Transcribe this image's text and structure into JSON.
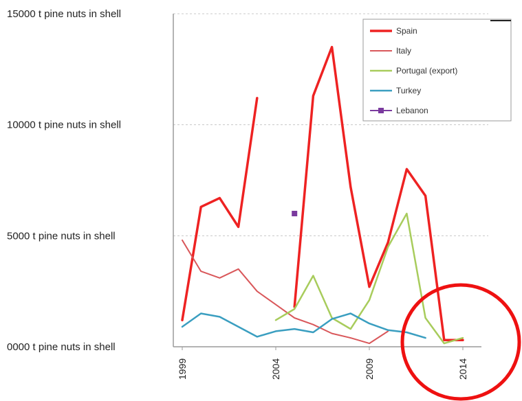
{
  "chart_data": {
    "type": "line",
    "x_ticks": [
      "1999",
      "2004",
      "2009",
      "2014"
    ],
    "y_ticks": [
      {
        "value": 0,
        "label": "0000 t pine nuts in shell"
      },
      {
        "value": 5000,
        "label": "5000 t pine nuts in shell"
      },
      {
        "value": 10000,
        "label": "10000 t pine nuts in shell"
      },
      {
        "value": 15000,
        "label": "15000 t pine nuts in shell"
      }
    ],
    "xlim": [
      1999,
      2016
    ],
    "ylim": [
      0,
      15000
    ],
    "grid": "horizontal dashed",
    "legend_position": "top-right",
    "series": [
      {
        "name": "Spain",
        "color": "#ee2222",
        "width": 3.5,
        "marker": "none",
        "segments": [
          [
            [
              1999,
              1200
            ],
            [
              2000,
              6300
            ],
            [
              2001,
              6700
            ],
            [
              2002,
              5400
            ],
            [
              2003,
              11200
            ]
          ],
          [
            [
              2005,
              1800
            ],
            [
              2006,
              11300
            ],
            [
              2007,
              13500
            ],
            [
              2008,
              7200
            ],
            [
              2009,
              2700
            ],
            [
              2010,
              4700
            ],
            [
              2011,
              8000
            ],
            [
              2012,
              6800
            ],
            [
              2013,
              300
            ],
            [
              2014,
              300
            ]
          ]
        ]
      },
      {
        "name": "Italy",
        "color": "#d9575a",
        "width": 2,
        "marker": "none",
        "segments": [
          [
            [
              1999,
              4800
            ],
            [
              2000,
              3400
            ],
            [
              2001,
              3100
            ],
            [
              2002,
              3500
            ],
            [
              2003,
              2500
            ],
            [
              2004,
              1900
            ],
            [
              2005,
              1300
            ],
            [
              2006,
              1000
            ],
            [
              2007,
              600
            ],
            [
              2008,
              400
            ],
            [
              2009,
              150
            ],
            [
              2010,
              700
            ]
          ]
        ]
      },
      {
        "name": "Portugal (export)",
        "color": "#a8cc5c",
        "width": 2.5,
        "marker": "none",
        "segments": [
          [
            [
              2004,
              1200
            ],
            [
              2005,
              1700
            ],
            [
              2006,
              3200
            ],
            [
              2007,
              1300
            ],
            [
              2008,
              800
            ],
            [
              2009,
              2100
            ],
            [
              2010,
              4500
            ],
            [
              2011,
              6000
            ],
            [
              2012,
              1300
            ],
            [
              2013,
              150
            ],
            [
              2014,
              400
            ]
          ]
        ]
      },
      {
        "name": "Turkey",
        "color": "#3a9ec0",
        "width": 2.5,
        "marker": "none",
        "segments": [
          [
            [
              1999,
              900
            ],
            [
              2000,
              1500
            ],
            [
              2001,
              1350
            ],
            [
              2002,
              900
            ],
            [
              2003,
              450
            ],
            [
              2004,
              700
            ],
            [
              2005,
              800
            ],
            [
              2006,
              650
            ],
            [
              2007,
              1250
            ],
            [
              2008,
              1500
            ],
            [
              2009,
              1050
            ],
            [
              2010,
              750
            ],
            [
              2011,
              650
            ],
            [
              2012,
              400
            ]
          ]
        ]
      },
      {
        "name": "Lebanon",
        "color": "#7a3a9e",
        "width": 2,
        "marker": "square",
        "segments": [
          [
            [
              2005,
              6000
            ]
          ]
        ]
      }
    ],
    "annotations": [
      {
        "type": "circle",
        "color": "#ee1111",
        "center": [
          2014,
          0
        ]
      }
    ]
  }
}
